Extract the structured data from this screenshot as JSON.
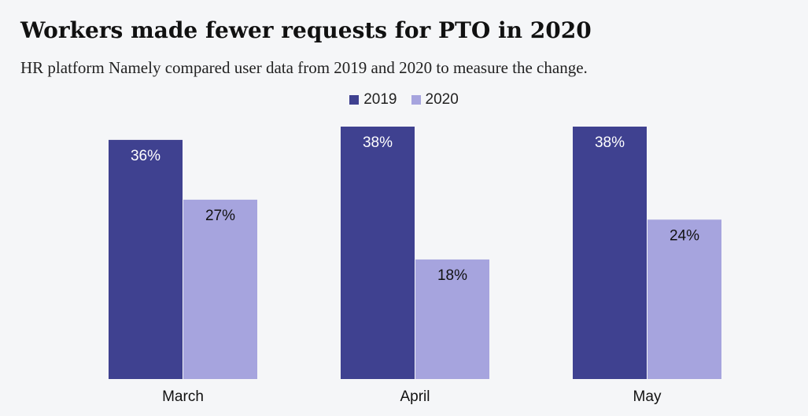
{
  "title": "Workers made fewer requests for PTO in 2020",
  "subtitle": "HR platform Namely compared user data from 2019 and 2020 to measure the change.",
  "colors": {
    "2019": "#3f4190",
    "2020": "#a6a4de"
  },
  "chart_data": {
    "type": "bar",
    "categories": [
      "March",
      "April",
      "May"
    ],
    "series": [
      {
        "name": "2019",
        "values": [
          36,
          38,
          38
        ],
        "labels": [
          "36%",
          "38%",
          "38%"
        ]
      },
      {
        "name": "2020",
        "values": [
          27,
          18,
          24
        ],
        "labels": [
          "27%",
          "18%",
          "24%"
        ]
      }
    ],
    "ylim": [
      0,
      38
    ],
    "legend_position": "top-center",
    "grid": false
  }
}
